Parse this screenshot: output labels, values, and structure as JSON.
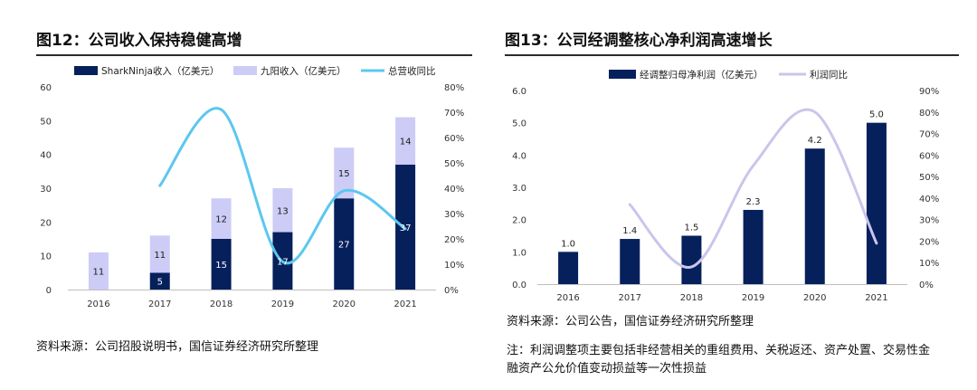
{
  "colors": {
    "navy": "#06205c",
    "lavender": "#cdccf6",
    "skyblue": "#5cc7ef",
    "lilac": "#c9c6ec",
    "axis": "#bfbfbf"
  },
  "left": {
    "title": "图12：公司收入保持稳健高增",
    "source": "资料来源：公司招股说明书，国信证券经济研究所整理"
  },
  "right": {
    "title": "图13：公司经调整核心净利润高速增长",
    "source": "资料来源：公司公告，国信证券经济研究所整理",
    "note": "注：利润调整项主要包括非经营相关的重组费用、关税返还、资产处置、交易性金融资产公允价值变动损益等一次性损益"
  },
  "chart_data": [
    {
      "type": "bar",
      "stacked": true,
      "categories": [
        "2016",
        "2017",
        "2018",
        "2019",
        "2020",
        "2021"
      ],
      "series": [
        {
          "name": "SharkNinja收入（亿美元）",
          "values": [
            0,
            5,
            15,
            17,
            27,
            37
          ],
          "labels": [
            "",
            "5",
            "15",
            "17",
            "27",
            "37"
          ]
        },
        {
          "name": "九阳收入（亿美元）",
          "values": [
            11,
            11,
            12,
            13,
            15,
            14
          ],
          "labels": [
            "11",
            "11",
            "12",
            "13",
            "15",
            "14"
          ]
        }
      ],
      "line": {
        "name": "总营收同比",
        "values": [
          null,
          41,
          71,
          11,
          39,
          24
        ]
      },
      "ylim": [
        0,
        60
      ],
      "yticks": [
        "0",
        "10",
        "20",
        "30",
        "40",
        "50",
        "60"
      ],
      "y2lim": [
        0,
        80
      ],
      "y2ticks": [
        "0%",
        "10%",
        "20%",
        "30%",
        "40%",
        "50%",
        "60%",
        "70%",
        "80%"
      ],
      "legend": "top"
    },
    {
      "type": "bar",
      "categories": [
        "2016",
        "2017",
        "2018",
        "2019",
        "2020",
        "2021"
      ],
      "series": [
        {
          "name": "经调整归母净利润（亿美元）",
          "values": [
            1.0,
            1.4,
            1.5,
            2.3,
            4.2,
            5.0
          ],
          "labels": [
            "1.0",
            "1.4",
            "1.5",
            "2.3",
            "4.2",
            "5.0"
          ]
        }
      ],
      "line": {
        "name": "利润同比",
        "values": [
          null,
          37,
          8,
          55,
          80,
          19
        ]
      },
      "ylim": [
        0,
        6
      ],
      "yticks": [
        "0.0",
        "1.0",
        "2.0",
        "3.0",
        "4.0",
        "5.0",
        "6.0"
      ],
      "y2lim": [
        0,
        90
      ],
      "y2ticks": [
        "0%",
        "10%",
        "20%",
        "30%",
        "40%",
        "50%",
        "60%",
        "70%",
        "80%",
        "90%"
      ],
      "legend": "top"
    }
  ]
}
